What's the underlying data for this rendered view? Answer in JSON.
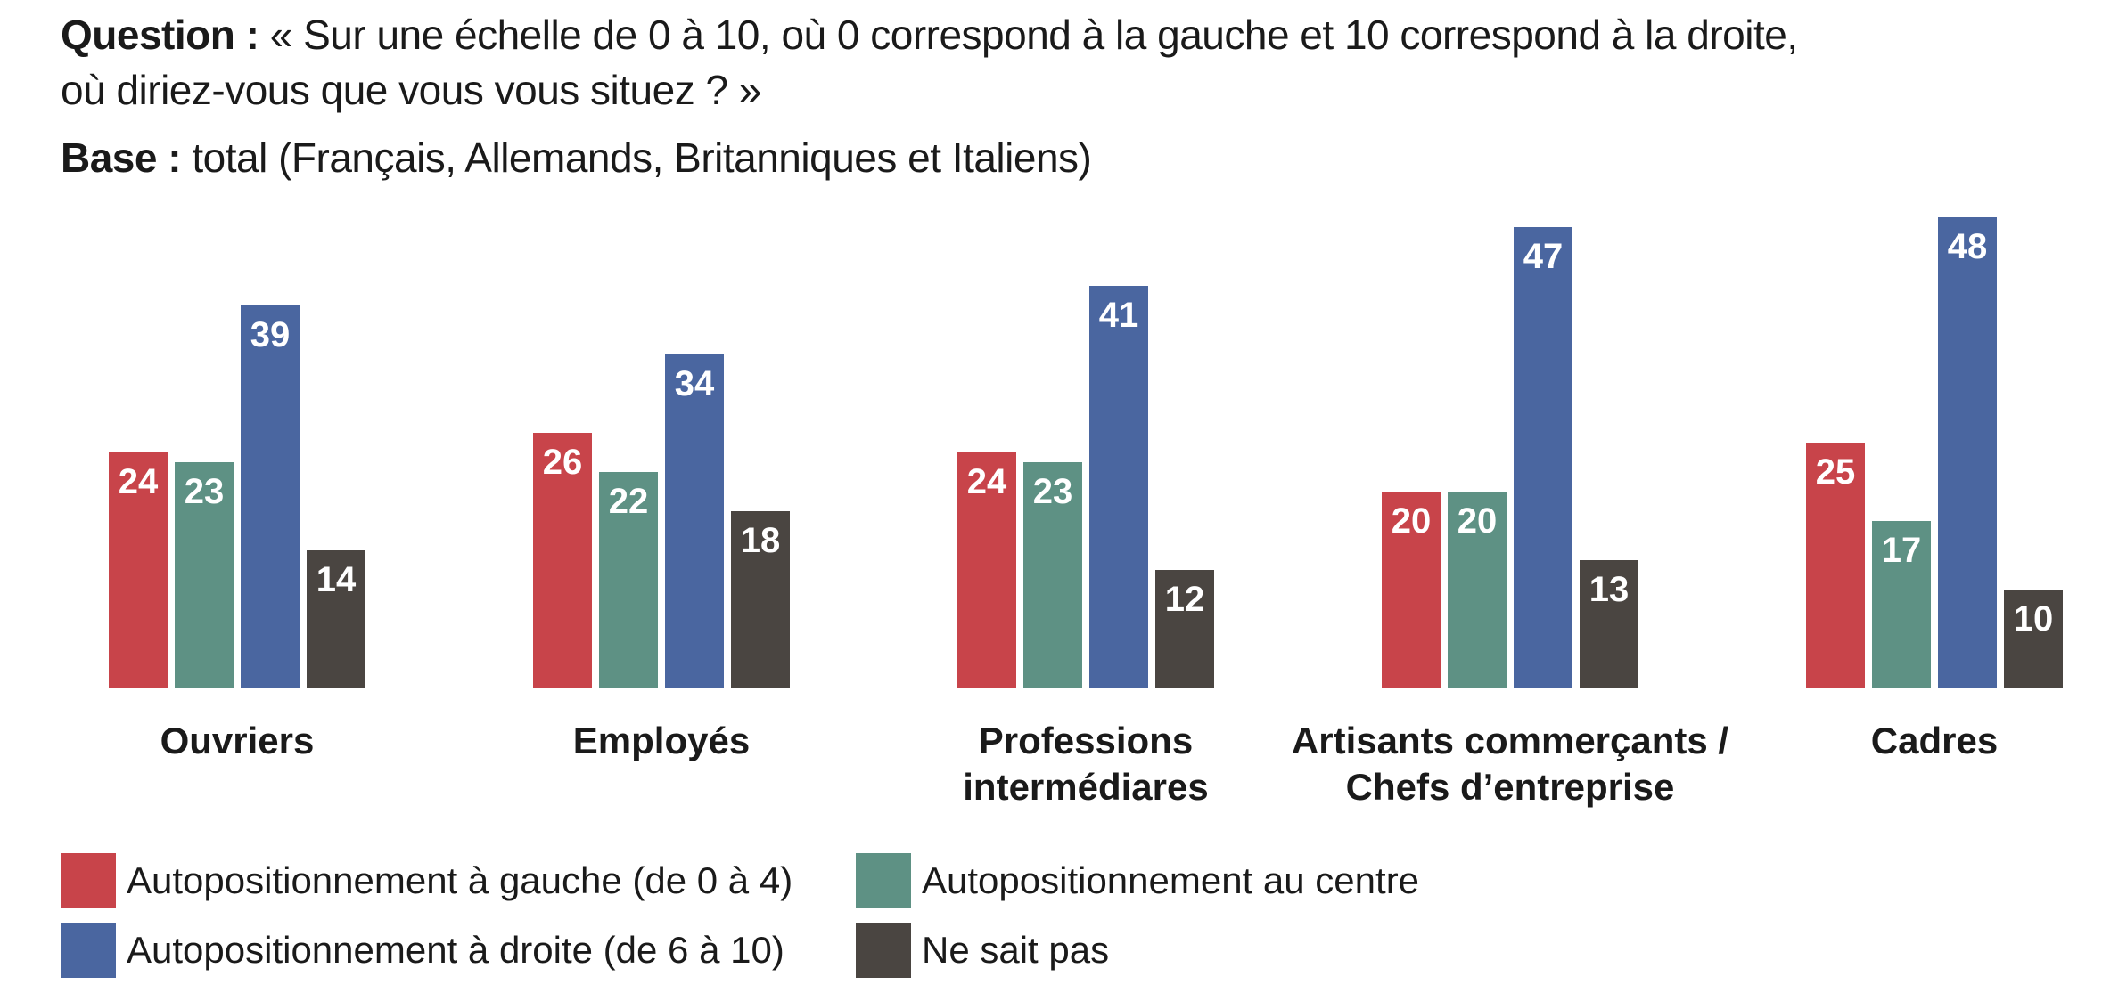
{
  "header": {
    "question_label": "Question :",
    "question_text_line1": " « Sur une échelle de 0 à 10, où 0 correspond à la gauche et 10 correspond à la droite,",
    "question_text_line2": "où diriez-vous que vous vous situez ? »",
    "base_label": "Base :",
    "base_text": " total (Français, Allemands, Britanniques et Italiens)"
  },
  "colors": {
    "gauche": "#c8444a",
    "centre": "#5e9184",
    "droite": "#4a66a0",
    "nsp": "#4a4541"
  },
  "chart_data": {
    "type": "bar",
    "title": "",
    "xlabel": "",
    "ylabel": "",
    "ylim": [
      0,
      48
    ],
    "grid": false,
    "legend_position": "bottom",
    "categories": [
      [
        "Ouvriers"
      ],
      [
        "Employés"
      ],
      [
        "Professions",
        "intermédiares"
      ],
      [
        "Artisants commerçants /",
        "Chefs d’entreprise"
      ],
      [
        "Cadres"
      ]
    ],
    "series": [
      {
        "key": "gauche",
        "name": "Autopositionnement à gauche (de 0 à 4)",
        "values": [
          24,
          26,
          24,
          20,
          25
        ]
      },
      {
        "key": "centre",
        "name": "Autopositionnement au centre",
        "values": [
          23,
          22,
          23,
          20,
          17
        ]
      },
      {
        "key": "droite",
        "name": "Autopositionnement à droite (de 6 à 10)",
        "values": [
          39,
          34,
          41,
          47,
          48
        ]
      },
      {
        "key": "nsp",
        "name": "Ne sait pas",
        "values": [
          14,
          18,
          12,
          13,
          10
        ]
      }
    ]
  }
}
